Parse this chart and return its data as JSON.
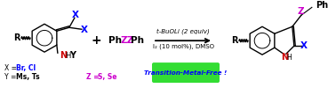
{
  "bg_color": "#ffffff",
  "green_box_color": "#33dd33",
  "green_box_text": "Transition-Metal-Free !",
  "green_box_text_color": "#0000ff",
  "reagents_line1": "t-BuOLi (2 equiv)",
  "reagents_line2": "I₂ (10 mol%), DMSO",
  "x_color": "#0000ff",
  "y_color": "#000000",
  "z_color": "#cc00cc",
  "n_color": "#cc0000",
  "figsize": [
    3.78,
    1.0
  ],
  "dpi": 100
}
